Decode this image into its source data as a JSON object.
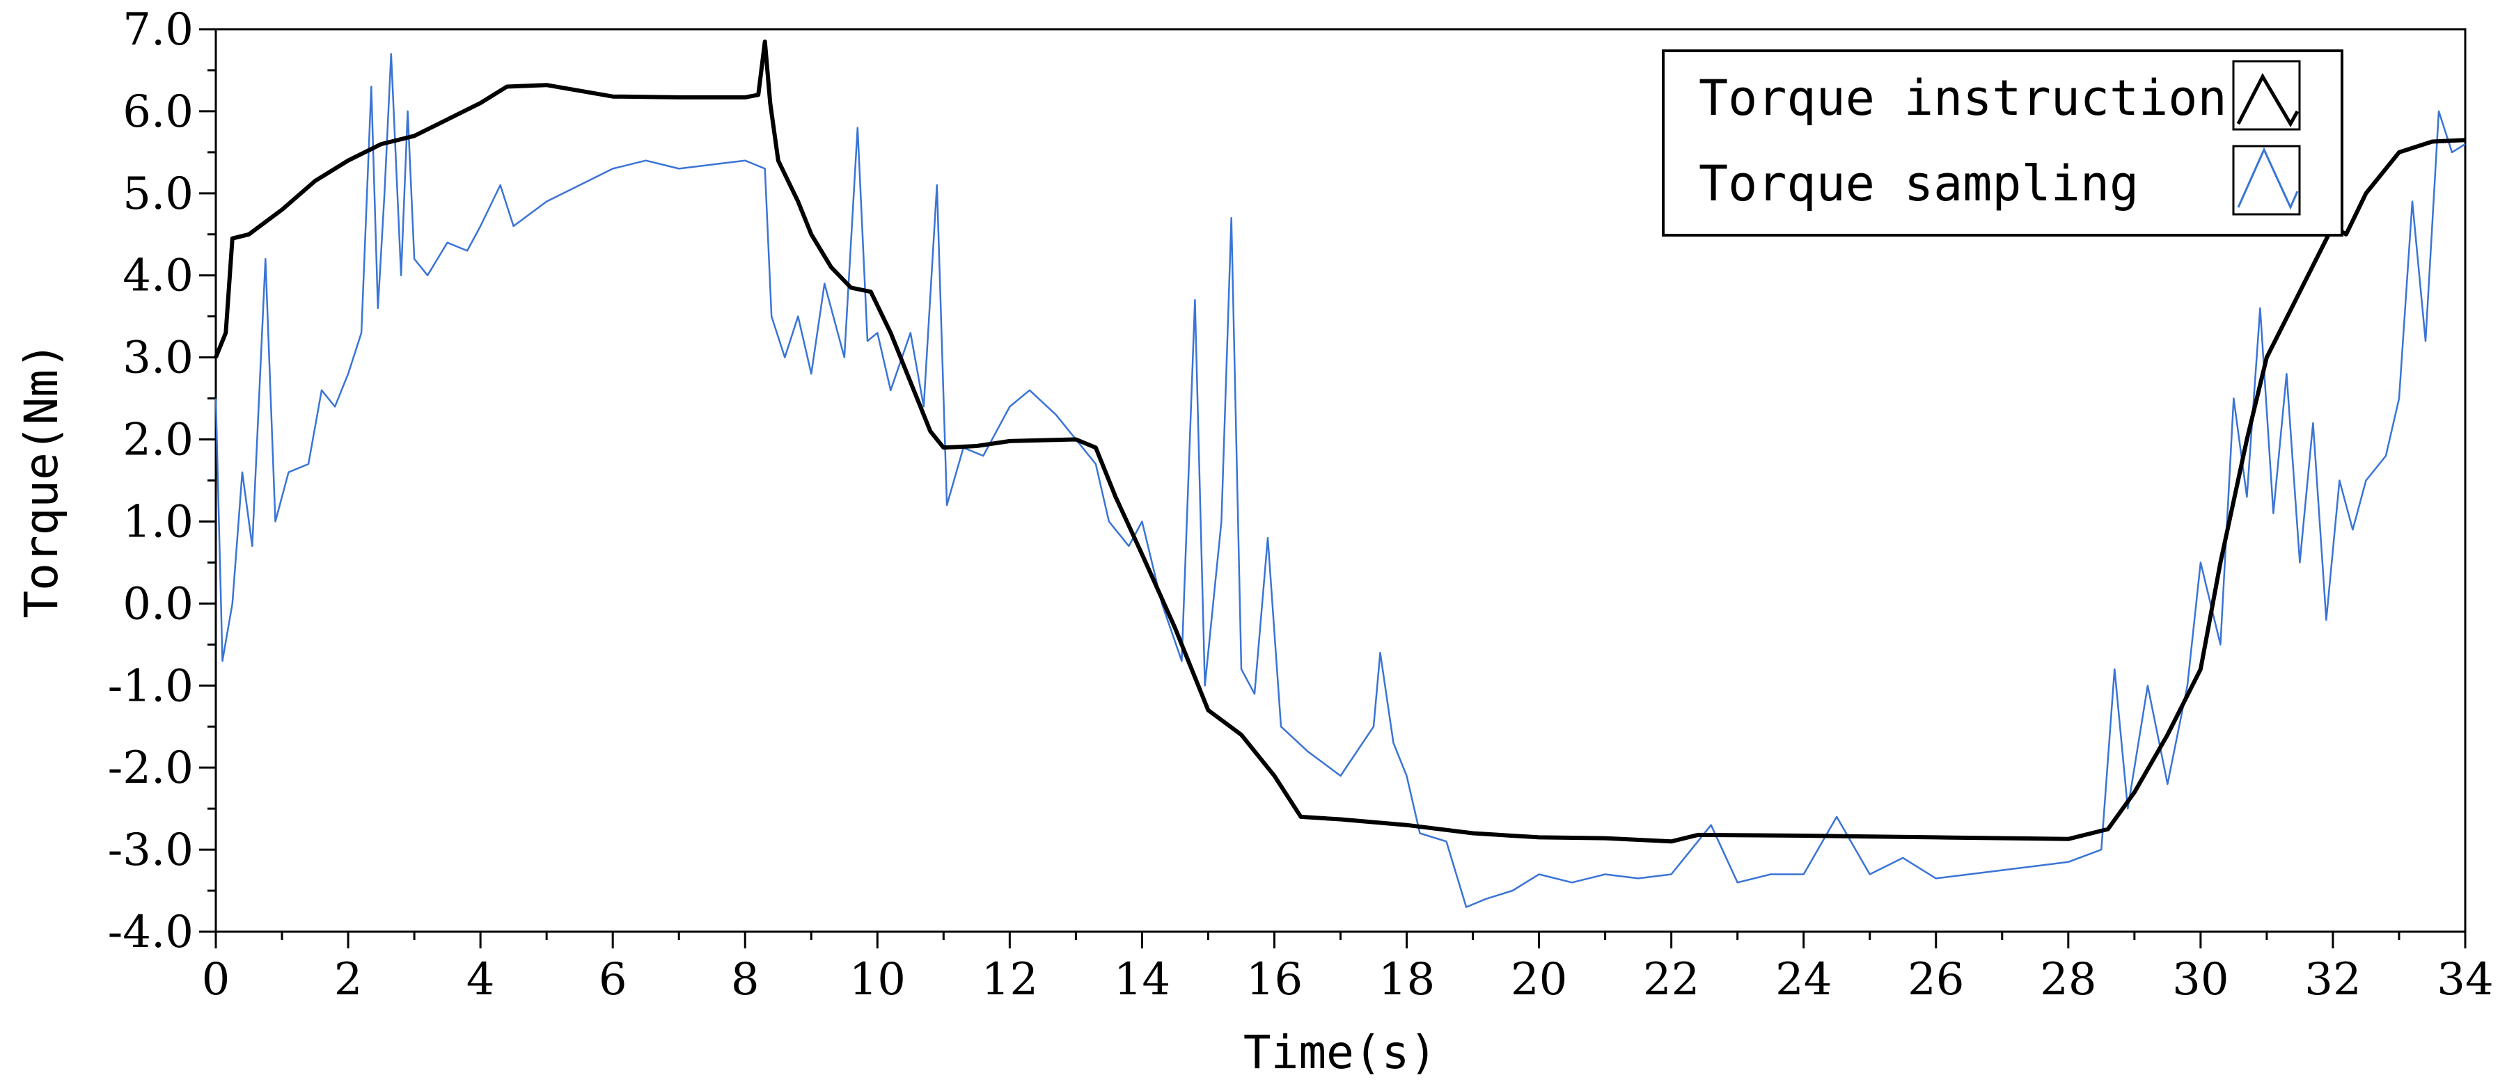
{
  "chart_data": {
    "type": "line",
    "title": "",
    "xlabel": "Time(s)",
    "ylabel": "Torque(Nm)",
    "xlim": [
      0,
      34
    ],
    "ylim": [
      -4,
      7
    ],
    "x_ticks": [
      "0",
      "2",
      "4",
      "6",
      "8",
      "10",
      "12",
      "14",
      "16",
      "18",
      "20",
      "22",
      "24",
      "26",
      "28",
      "30",
      "32",
      "34"
    ],
    "y_ticks": [
      "-4.0",
      "-3.0",
      "-2.0",
      "-1.0",
      "0.0",
      "1.0",
      "2.0",
      "3.0",
      "4.0",
      "5.0",
      "6.0",
      "7.0"
    ],
    "grid": false,
    "legend_position": "top-right",
    "series": [
      {
        "name": "Torque instruction",
        "color": "#000000",
        "points": [
          [
            0,
            3.0
          ],
          [
            0.15,
            3.3
          ],
          [
            0.25,
            4.45
          ],
          [
            0.5,
            4.5
          ],
          [
            1.0,
            4.8
          ],
          [
            1.5,
            5.15
          ],
          [
            2.0,
            5.4
          ],
          [
            2.5,
            5.6
          ],
          [
            3.0,
            5.7
          ],
          [
            3.5,
            5.9
          ],
          [
            4.0,
            6.1
          ],
          [
            4.4,
            6.3
          ],
          [
            5.0,
            6.32
          ],
          [
            5.5,
            6.25
          ],
          [
            6.0,
            6.18
          ],
          [
            7.0,
            6.17
          ],
          [
            8.0,
            6.17
          ],
          [
            8.2,
            6.2
          ],
          [
            8.3,
            6.85
          ],
          [
            8.38,
            6.1
          ],
          [
            8.5,
            5.4
          ],
          [
            8.8,
            4.9
          ],
          [
            9.0,
            4.5
          ],
          [
            9.3,
            4.1
          ],
          [
            9.6,
            3.85
          ],
          [
            9.9,
            3.8
          ],
          [
            10.2,
            3.3
          ],
          [
            10.5,
            2.7
          ],
          [
            10.8,
            2.1
          ],
          [
            11.0,
            1.9
          ],
          [
            11.5,
            1.92
          ],
          [
            12.0,
            1.98
          ],
          [
            13.0,
            2.0
          ],
          [
            13.3,
            1.9
          ],
          [
            13.6,
            1.3
          ],
          [
            14.0,
            0.6
          ],
          [
            14.5,
            -0.3
          ],
          [
            15.0,
            -1.3
          ],
          [
            15.5,
            -1.6
          ],
          [
            16.0,
            -2.1
          ],
          [
            16.4,
            -2.6
          ],
          [
            17.0,
            -2.63
          ],
          [
            18.0,
            -2.7
          ],
          [
            19.0,
            -2.8
          ],
          [
            20.0,
            -2.85
          ],
          [
            21.0,
            -2.86
          ],
          [
            22.0,
            -2.9
          ],
          [
            22.4,
            -2.82
          ],
          [
            24.0,
            -2.83
          ],
          [
            26.0,
            -2.85
          ],
          [
            28.0,
            -2.87
          ],
          [
            28.6,
            -2.75
          ],
          [
            29.0,
            -2.3
          ],
          [
            29.5,
            -1.6
          ],
          [
            30.0,
            -0.8
          ],
          [
            30.3,
            0.5
          ],
          [
            30.7,
            2.0
          ],
          [
            31.0,
            3.0
          ],
          [
            31.5,
            3.8
          ],
          [
            32.0,
            4.6
          ],
          [
            32.2,
            4.5
          ],
          [
            32.5,
            5.0
          ],
          [
            33.0,
            5.5
          ],
          [
            33.5,
            5.63
          ],
          [
            34.0,
            5.65
          ]
        ]
      },
      {
        "name": "Torque sampling",
        "color": "#3a74d6",
        "points": [
          [
            0,
            2.5
          ],
          [
            0.1,
            -0.7
          ],
          [
            0.25,
            0.0
          ],
          [
            0.4,
            1.6
          ],
          [
            0.55,
            0.7
          ],
          [
            0.75,
            4.2
          ],
          [
            0.9,
            1.0
          ],
          [
            1.1,
            1.6
          ],
          [
            1.4,
            1.7
          ],
          [
            1.6,
            2.6
          ],
          [
            1.8,
            2.4
          ],
          [
            2.0,
            2.8
          ],
          [
            2.2,
            3.3
          ],
          [
            2.35,
            6.3
          ],
          [
            2.45,
            3.6
          ],
          [
            2.55,
            5.0
          ],
          [
            2.65,
            6.7
          ],
          [
            2.8,
            4.0
          ],
          [
            2.9,
            6.0
          ],
          [
            3.0,
            4.2
          ],
          [
            3.2,
            4.0
          ],
          [
            3.5,
            4.4
          ],
          [
            3.8,
            4.3
          ],
          [
            4.0,
            4.6
          ],
          [
            4.3,
            5.1
          ],
          [
            4.5,
            4.6
          ],
          [
            5.0,
            4.9
          ],
          [
            5.5,
            5.1
          ],
          [
            6.0,
            5.3
          ],
          [
            6.5,
            5.4
          ],
          [
            7.0,
            5.3
          ],
          [
            7.5,
            5.35
          ],
          [
            8.0,
            5.4
          ],
          [
            8.3,
            5.3
          ],
          [
            8.4,
            3.5
          ],
          [
            8.6,
            3.0
          ],
          [
            8.8,
            3.5
          ],
          [
            9.0,
            2.8
          ],
          [
            9.2,
            3.9
          ],
          [
            9.5,
            3.0
          ],
          [
            9.7,
            5.8
          ],
          [
            9.85,
            3.2
          ],
          [
            10.0,
            3.3
          ],
          [
            10.2,
            2.6
          ],
          [
            10.5,
            3.3
          ],
          [
            10.7,
            2.4
          ],
          [
            10.9,
            5.1
          ],
          [
            11.05,
            1.2
          ],
          [
            11.3,
            1.9
          ],
          [
            11.6,
            1.8
          ],
          [
            12.0,
            2.4
          ],
          [
            12.3,
            2.6
          ],
          [
            12.7,
            2.3
          ],
          [
            13.0,
            2.0
          ],
          [
            13.3,
            1.7
          ],
          [
            13.5,
            1.0
          ],
          [
            13.8,
            0.7
          ],
          [
            14.0,
            1.0
          ],
          [
            14.3,
            0.0
          ],
          [
            14.6,
            -0.7
          ],
          [
            14.8,
            3.7
          ],
          [
            14.95,
            -1.0
          ],
          [
            15.2,
            1.0
          ],
          [
            15.35,
            4.7
          ],
          [
            15.5,
            -0.8
          ],
          [
            15.7,
            -1.1
          ],
          [
            15.9,
            0.8
          ],
          [
            16.1,
            -1.5
          ],
          [
            16.5,
            -1.8
          ],
          [
            17.0,
            -2.1
          ],
          [
            17.5,
            -1.5
          ],
          [
            17.6,
            -0.6
          ],
          [
            17.8,
            -1.7
          ],
          [
            18.0,
            -2.1
          ],
          [
            18.2,
            -2.8
          ],
          [
            18.6,
            -2.9
          ],
          [
            18.9,
            -3.7
          ],
          [
            19.2,
            -3.6
          ],
          [
            19.6,
            -3.5
          ],
          [
            20.0,
            -3.3
          ],
          [
            20.5,
            -3.4
          ],
          [
            21.0,
            -3.3
          ],
          [
            21.5,
            -3.35
          ],
          [
            22.0,
            -3.3
          ],
          [
            22.4,
            -2.9
          ],
          [
            22.6,
            -2.7
          ],
          [
            23.0,
            -3.4
          ],
          [
            23.5,
            -3.3
          ],
          [
            24.0,
            -3.3
          ],
          [
            24.5,
            -2.6
          ],
          [
            25.0,
            -3.3
          ],
          [
            25.5,
            -3.1
          ],
          [
            26.0,
            -3.35
          ],
          [
            26.5,
            -3.3
          ],
          [
            27.0,
            -3.25
          ],
          [
            27.5,
            -3.2
          ],
          [
            28.0,
            -3.15
          ],
          [
            28.5,
            -3.0
          ],
          [
            28.7,
            -0.8
          ],
          [
            28.9,
            -2.5
          ],
          [
            29.2,
            -1.0
          ],
          [
            29.5,
            -2.2
          ],
          [
            29.8,
            -1.0
          ],
          [
            30.0,
            0.5
          ],
          [
            30.3,
            -0.5
          ],
          [
            30.5,
            2.5
          ],
          [
            30.7,
            1.3
          ],
          [
            30.9,
            3.6
          ],
          [
            31.1,
            1.1
          ],
          [
            31.3,
            2.8
          ],
          [
            31.5,
            0.5
          ],
          [
            31.7,
            2.2
          ],
          [
            31.9,
            -0.2
          ],
          [
            32.1,
            1.5
          ],
          [
            32.3,
            0.9
          ],
          [
            32.5,
            1.5
          ],
          [
            32.8,
            1.8
          ],
          [
            33.0,
            2.5
          ],
          [
            33.2,
            4.9
          ],
          [
            33.4,
            3.2
          ],
          [
            33.6,
            6.0
          ],
          [
            33.8,
            5.5
          ],
          [
            34.0,
            5.6
          ]
        ]
      }
    ]
  }
}
